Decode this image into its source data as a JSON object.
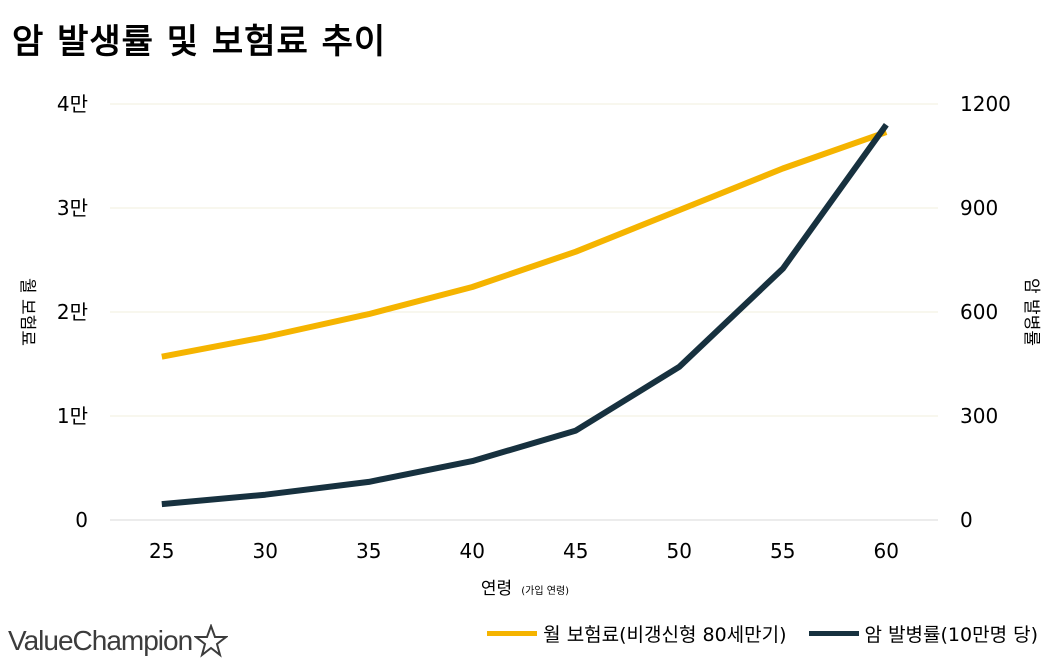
{
  "chart_data": {
    "type": "line",
    "title": "암 발생률 및 보험료 추이",
    "x": [
      25,
      30,
      35,
      40,
      45,
      50,
      55,
      60
    ],
    "xlabel": "연령",
    "xlabel_sub": "(가입 연령)",
    "ylabel_left": "월 보험료",
    "ylabel_right": "암 발병률",
    "ylim_left": [
      0,
      40000
    ],
    "ylim_right": [
      0,
      1200
    ],
    "yticks_left": [
      "0",
      "1만",
      "2만",
      "3만",
      "4만"
    ],
    "yticks_right": [
      "0",
      "300",
      "600",
      "900",
      "1200"
    ],
    "grid": true,
    "legend_position": "bottom-right",
    "series": [
      {
        "name": "월 보험료(비갱신형 80세만기)",
        "axis": "left",
        "color": "#f5b400",
        "values": [
          15700,
          17600,
          19800,
          22400,
          25800,
          29800,
          33800,
          37300
        ]
      },
      {
        "name": "암 발병률(10만명 당)",
        "axis": "right",
        "color": "#17313f",
        "values": [
          46,
          73,
          110,
          170,
          258,
          442,
          725,
          1140
        ]
      }
    ]
  },
  "logo": {
    "text": "ValueChampion",
    "icon": "star-outline-icon"
  }
}
